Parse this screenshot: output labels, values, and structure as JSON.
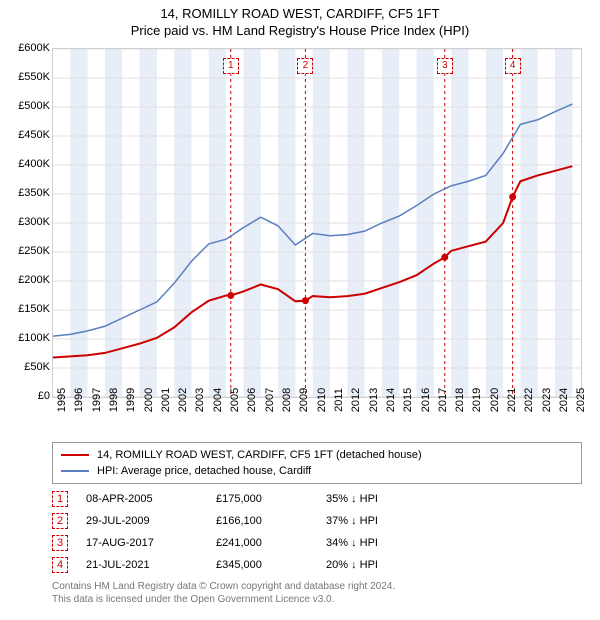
{
  "title": {
    "line1": "14, ROMILLY ROAD WEST, CARDIFF, CF5 1FT",
    "line2": "Price paid vs. HM Land Registry's House Price Index (HPI)"
  },
  "chart": {
    "type": "line",
    "background_color": "#ffffff",
    "grid_color": "#e0e0e0",
    "border_color": "#d0d0d0",
    "marker_dash_color": "#cc0000",
    "band_color": "#e8eef7",
    "x_range": [
      1995,
      2025.5
    ],
    "y_range": [
      0,
      600000
    ],
    "y_ticks": [
      {
        "v": 0,
        "label": "£0"
      },
      {
        "v": 50000,
        "label": "£50K"
      },
      {
        "v": 100000,
        "label": "£100K"
      },
      {
        "v": 150000,
        "label": "£150K"
      },
      {
        "v": 200000,
        "label": "£200K"
      },
      {
        "v": 250000,
        "label": "£250K"
      },
      {
        "v": 300000,
        "label": "£300K"
      },
      {
        "v": 350000,
        "label": "£350K"
      },
      {
        "v": 400000,
        "label": "£400K"
      },
      {
        "v": 450000,
        "label": "£450K"
      },
      {
        "v": 500000,
        "label": "£500K"
      },
      {
        "v": 550000,
        "label": "£550K"
      },
      {
        "v": 600000,
        "label": "£600K"
      }
    ],
    "x_ticks": [
      1995,
      1996,
      1997,
      1998,
      1999,
      2000,
      2001,
      2002,
      2003,
      2004,
      2005,
      2006,
      2007,
      2008,
      2009,
      2010,
      2011,
      2012,
      2013,
      2014,
      2015,
      2016,
      2017,
      2018,
      2019,
      2020,
      2021,
      2022,
      2023,
      2024,
      2025
    ],
    "year_bands": [
      1996,
      1998,
      2000,
      2002,
      2004,
      2006,
      2008,
      2010,
      2012,
      2014,
      2016,
      2018,
      2020,
      2022,
      2024
    ],
    "sale_markers": [
      {
        "idx": "1",
        "x": 2005.27
      },
      {
        "idx": "2",
        "x": 2009.58
      },
      {
        "idx": "3",
        "x": 2017.63
      },
      {
        "idx": "4",
        "x": 2021.55
      }
    ],
    "series": [
      {
        "name": "price_paid",
        "color": "#cc0000",
        "width": 2,
        "points": [
          [
            1995,
            68000
          ],
          [
            1996,
            70000
          ],
          [
            1997,
            72000
          ],
          [
            1998,
            76000
          ],
          [
            1999,
            84000
          ],
          [
            2000,
            92000
          ],
          [
            2001,
            102000
          ],
          [
            2002,
            120000
          ],
          [
            2003,
            146000
          ],
          [
            2004,
            166000
          ],
          [
            2005,
            175000
          ],
          [
            2005.27,
            175000
          ],
          [
            2006,
            182000
          ],
          [
            2007,
            194000
          ],
          [
            2008,
            186000
          ],
          [
            2009,
            165000
          ],
          [
            2009.58,
            166100
          ],
          [
            2010,
            174000
          ],
          [
            2011,
            172000
          ],
          [
            2012,
            174000
          ],
          [
            2013,
            178000
          ],
          [
            2014,
            188000
          ],
          [
            2015,
            198000
          ],
          [
            2016,
            210000
          ],
          [
            2017,
            230000
          ],
          [
            2017.63,
            241000
          ],
          [
            2018,
            252000
          ],
          [
            2019,
            260000
          ],
          [
            2020,
            268000
          ],
          [
            2021,
            300000
          ],
          [
            2021.55,
            345000
          ],
          [
            2022,
            372000
          ],
          [
            2023,
            382000
          ],
          [
            2024,
            390000
          ],
          [
            2025,
            398000
          ]
        ],
        "markers": [
          [
            2005.27,
            175000
          ],
          [
            2009.58,
            166100
          ],
          [
            2017.63,
            241000
          ],
          [
            2021.55,
            345000
          ]
        ]
      },
      {
        "name": "hpi",
        "color": "#5b7fbf",
        "width": 1.5,
        "points": [
          [
            1995,
            105000
          ],
          [
            1996,
            108000
          ],
          [
            1997,
            114000
          ],
          [
            1998,
            122000
          ],
          [
            1999,
            136000
          ],
          [
            2000,
            150000
          ],
          [
            2001,
            164000
          ],
          [
            2002,
            196000
          ],
          [
            2003,
            234000
          ],
          [
            2004,
            264000
          ],
          [
            2005,
            272000
          ],
          [
            2006,
            292000
          ],
          [
            2007,
            310000
          ],
          [
            2008,
            295000
          ],
          [
            2009,
            262000
          ],
          [
            2010,
            282000
          ],
          [
            2011,
            278000
          ],
          [
            2012,
            280000
          ],
          [
            2013,
            286000
          ],
          [
            2014,
            300000
          ],
          [
            2015,
            312000
          ],
          [
            2016,
            330000
          ],
          [
            2017,
            350000
          ],
          [
            2018,
            364000
          ],
          [
            2019,
            372000
          ],
          [
            2020,
            382000
          ],
          [
            2021,
            420000
          ],
          [
            2022,
            470000
          ],
          [
            2023,
            478000
          ],
          [
            2024,
            492000
          ],
          [
            2025,
            505000
          ]
        ]
      }
    ]
  },
  "legend": {
    "items": [
      {
        "color": "#cc0000",
        "label": "14, ROMILLY ROAD WEST, CARDIFF, CF5 1FT (detached house)"
      },
      {
        "color": "#5b7fbf",
        "label": "HPI: Average price, detached house, Cardiff"
      }
    ]
  },
  "sales": [
    {
      "idx": "1",
      "date": "08-APR-2005",
      "price": "£175,000",
      "diff": "35% ↓ HPI"
    },
    {
      "idx": "2",
      "date": "29-JUL-2009",
      "price": "£166,100",
      "diff": "37% ↓ HPI"
    },
    {
      "idx": "3",
      "date": "17-AUG-2017",
      "price": "£241,000",
      "diff": "34% ↓ HPI"
    },
    {
      "idx": "4",
      "date": "21-JUL-2021",
      "price": "£345,000",
      "diff": "20% ↓ HPI"
    }
  ],
  "footer": {
    "line1": "Contains HM Land Registry data © Crown copyright and database right 2024.",
    "line2": "This data is licensed under the Open Government Licence v3.0."
  }
}
